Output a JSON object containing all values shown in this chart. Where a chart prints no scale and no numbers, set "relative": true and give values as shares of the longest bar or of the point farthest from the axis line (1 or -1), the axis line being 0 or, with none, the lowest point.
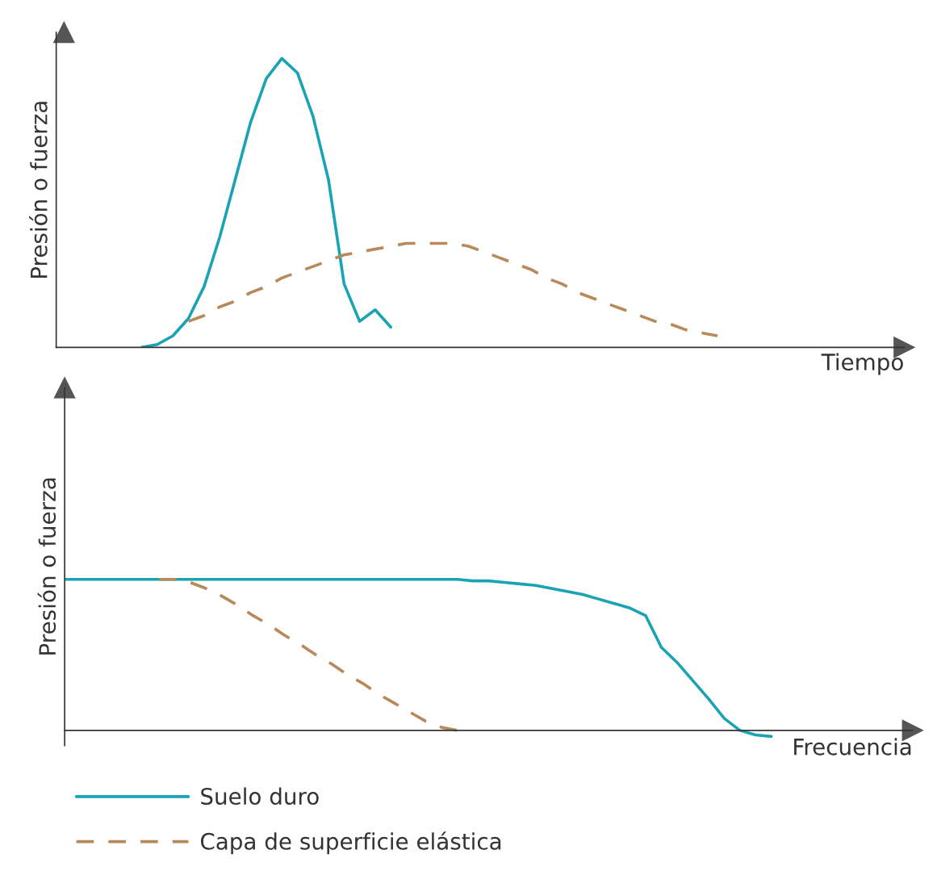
{
  "chart_data": [
    {
      "type": "line",
      "relative": true,
      "ylabel": "Presión o fuerza",
      "xlabel": "Tiempo",
      "grid": false,
      "marker": "none",
      "categories": [
        null,
        null,
        null,
        null,
        null,
        null,
        null,
        null,
        null,
        null,
        null,
        null,
        null,
        null,
        null,
        null,
        null,
        null,
        null,
        null,
        null,
        null,
        null,
        null,
        null,
        null,
        null,
        null,
        null,
        null,
        null,
        null,
        null,
        null,
        null,
        null,
        null,
        null,
        null,
        null,
        null,
        null,
        null,
        null,
        null,
        null,
        null,
        null,
        null,
        null,
        null,
        null,
        null,
        null
      ],
      "series": [
        {
          "color": "#1aa3b5",
          "line_style": "solid",
          "values": [
            null,
            null,
            null,
            null,
            null,
            0.0,
            0.01,
            0.04,
            0.1,
            0.21,
            0.38,
            0.58,
            0.78,
            0.93,
            1.0,
            0.95,
            0.8,
            0.58,
            0.22,
            0.09,
            0.13,
            0.07,
            null,
            null,
            null,
            null,
            null,
            null,
            null,
            null,
            null,
            null,
            null,
            null,
            null,
            null,
            null,
            null,
            null,
            null,
            null,
            null,
            null,
            null,
            null,
            null,
            null,
            null,
            null,
            null,
            null,
            null,
            null,
            null
          ]
        },
        {
          "color": "#b8895a",
          "line_style": "dashed",
          "values": [
            null,
            null,
            null,
            null,
            null,
            null,
            null,
            null,
            0.09,
            0.11,
            0.14,
            0.16,
            0.19,
            0.21,
            0.24,
            0.26,
            0.28,
            0.3,
            0.32,
            0.33,
            0.34,
            0.35,
            0.36,
            0.36,
            0.36,
            0.36,
            0.35,
            0.33,
            0.31,
            0.29,
            0.27,
            0.24,
            0.22,
            0.19,
            0.17,
            0.15,
            0.13,
            0.11,
            0.09,
            0.08,
            0.06,
            0.05,
            0.04,
            null,
            null,
            null,
            null,
            null,
            null,
            null,
            null,
            null,
            null,
            null
          ]
        }
      ]
    },
    {
      "type": "line",
      "relative": true,
      "ylabel": "Presión o fuerza",
      "xlabel": "Frecuencia",
      "grid": false,
      "marker": "none",
      "legend": "bottom",
      "categories": [
        null,
        null,
        null,
        null,
        null,
        null,
        null,
        null,
        null,
        null,
        null,
        null,
        null,
        null,
        null,
        null,
        null,
        null,
        null,
        null,
        null,
        null,
        null,
        null,
        null,
        null,
        null,
        null,
        null,
        null,
        null,
        null,
        null,
        null,
        null,
        null,
        null,
        null,
        null,
        null,
        null,
        null,
        null,
        null,
        null,
        null,
        null,
        null,
        null,
        null,
        null,
        null,
        null,
        null
      ],
      "series": [
        {
          "name": "Suelo duro",
          "color": "#1aa3b5",
          "line_style": "solid",
          "values": [
            1.0,
            1.0,
            1.0,
            1.0,
            1.0,
            1.0,
            1.0,
            1.0,
            1.0,
            1.0,
            1.0,
            1.0,
            1.0,
            1.0,
            1.0,
            1.0,
            1.0,
            1.0,
            1.0,
            1.0,
            1.0,
            1.0,
            1.0,
            1.0,
            1.0,
            1.0,
            0.99,
            0.99,
            0.98,
            0.97,
            0.96,
            0.94,
            0.92,
            0.9,
            0.87,
            0.84,
            0.81,
            0.76,
            0.55,
            0.45,
            0.33,
            0.21,
            0.08,
            0.0,
            -0.03,
            -0.04,
            null,
            null,
            null,
            null,
            null,
            null,
            null,
            null
          ]
        },
        {
          "name": "Capa de superficie elástica",
          "color": "#b8895a",
          "line_style": "dashed",
          "values": [
            null,
            null,
            null,
            null,
            null,
            null,
            1.0,
            1.0,
            0.98,
            0.94,
            0.89,
            0.83,
            0.76,
            0.7,
            0.63,
            0.57,
            0.5,
            0.44,
            0.37,
            0.31,
            0.24,
            0.18,
            0.12,
            0.06,
            0.02,
            0.0,
            null,
            null,
            null,
            null,
            null,
            null,
            null,
            null,
            null,
            null,
            null,
            null,
            null,
            null,
            null,
            null,
            null,
            null,
            null,
            null,
            null,
            null,
            null,
            null,
            null,
            null,
            null,
            null
          ]
        }
      ]
    }
  ]
}
